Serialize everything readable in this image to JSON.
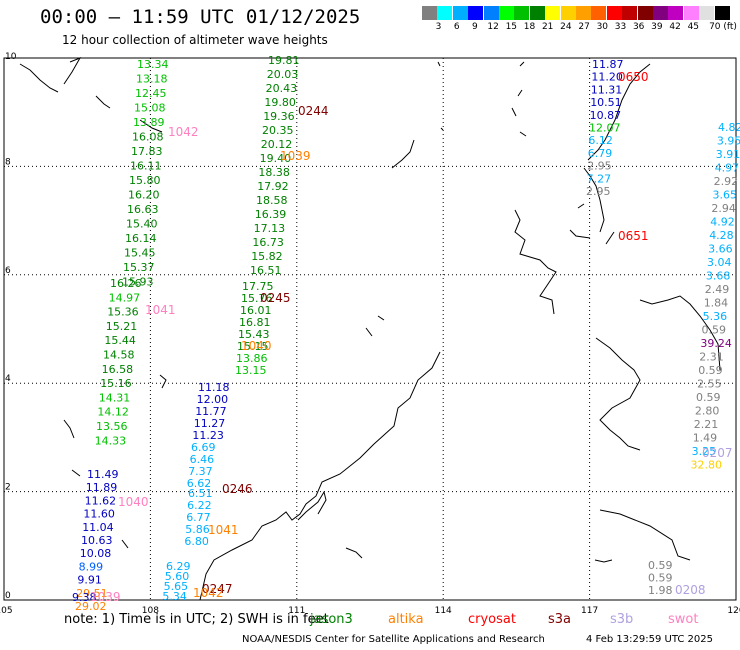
{
  "title": "00:00 – 11:59 UTC 01/12/2025",
  "subtitle": "12 hour collection of altimeter wave heights",
  "scale": {
    "colors": [
      "#808080",
      "#00ffff",
      "#00b0ff",
      "#0000ff",
      "#0080ff",
      "#00ff00",
      "#00c000",
      "#008000",
      "#ffff00",
      "#ffd000",
      "#ffa000",
      "#ff6000",
      "#ff0000",
      "#c00000",
      "#800000",
      "#800080",
      "#c000c0",
      "#ff80ff",
      "#e0e0e0",
      "#000000"
    ],
    "labels": [
      "3",
      "6",
      "9",
      "12",
      "15",
      "18",
      "21",
      "24",
      "27",
      "30",
      "33",
      "36",
      "39",
      "42",
      "45",
      "70 (ft)"
    ]
  },
  "axes": {
    "x_ticks": [
      "105",
      "108",
      "111",
      "114",
      "117",
      "120"
    ],
    "y_ticks": [
      "0",
      "2",
      "4",
      "6",
      "8",
      "10"
    ]
  },
  "tracks": [
    {
      "id": "1042",
      "color": "#ff80c0",
      "values": [
        {
          "v": "13.34",
          "c": "#00c000"
        },
        {
          "v": "13.18",
          "c": "#00c000"
        },
        {
          "v": "12.45",
          "c": "#00c000"
        },
        {
          "v": "15.08",
          "c": "#00c000"
        },
        {
          "v": "13.89",
          "c": "#00c000"
        },
        {
          "v": "16.08",
          "c": "#008000"
        },
        {
          "v": "17.83",
          "c": "#008000"
        },
        {
          "v": "16.11",
          "c": "#008000"
        },
        {
          "v": "15.80",
          "c": "#008000"
        },
        {
          "v": "16.20",
          "c": "#008000"
        },
        {
          "v": "16.63",
          "c": "#008000"
        },
        {
          "v": "15.40",
          "c": "#008000"
        },
        {
          "v": "16.14",
          "c": "#008000"
        },
        {
          "v": "15.45",
          "c": "#008000"
        },
        {
          "v": "15.37",
          "c": "#008000"
        },
        {
          "v": "15.93",
          "c": "#008000"
        }
      ]
    },
    {
      "id": "1041",
      "color": "#ff80c0",
      "values": [
        {
          "v": "16.26",
          "c": "#008000"
        },
        {
          "v": "14.97",
          "c": "#00c000"
        },
        {
          "v": "15.36",
          "c": "#008000"
        },
        {
          "v": "15.21",
          "c": "#008000"
        },
        {
          "v": "15.44",
          "c": "#008000"
        },
        {
          "v": "14.58",
          "c": "#008000"
        },
        {
          "v": "16.58",
          "c": "#008000"
        },
        {
          "v": "15.16",
          "c": "#008000"
        },
        {
          "v": "14.31",
          "c": "#00c000"
        },
        {
          "v": "14.12",
          "c": "#00c000"
        },
        {
          "v": "13.56",
          "c": "#00c000"
        },
        {
          "v": "14.33",
          "c": "#00c000"
        }
      ]
    },
    {
      "id": "1040",
      "color": "#ff80c0",
      "values": [
        {
          "v": "11.49",
          "c": "#0000c0"
        },
        {
          "v": "11.89",
          "c": "#0000c0"
        },
        {
          "v": "11.62",
          "c": "#0000c0"
        },
        {
          "v": "11.60",
          "c": "#0000c0"
        },
        {
          "v": "11.04",
          "c": "#0000c0"
        },
        {
          "v": "10.63",
          "c": "#0000c0"
        },
        {
          "v": "10.08",
          "c": "#0000c0"
        },
        {
          "v": "8.99",
          "c": "#0060ff"
        },
        {
          "v": "9.91",
          "c": "#0000c0"
        },
        {
          "v": "29.51",
          "c": "#ff8000"
        },
        {
          "v": "29.02",
          "c": "#ff8000"
        }
      ]
    },
    {
      "id": "1039",
      "color": "#ff80c0",
      "values": [
        {
          "v": "9.38",
          "c": "#0000c0"
        }
      ]
    },
    {
      "id": "0244",
      "color": "#800000",
      "values": [
        {
          "v": "19.81",
          "c": "#008000"
        },
        {
          "v": "20.03",
          "c": "#008000"
        },
        {
          "v": "20.43",
          "c": "#008000"
        },
        {
          "v": "19.80",
          "c": "#008000"
        },
        {
          "v": "19.36",
          "c": "#008000"
        },
        {
          "v": "20.35",
          "c": "#008000"
        },
        {
          "v": "20.12",
          "c": "#008000"
        },
        {
          "v": "19.40",
          "c": "#008000"
        },
        {
          "v": "18.38",
          "c": "#008000"
        },
        {
          "v": "17.92",
          "c": "#008000"
        },
        {
          "v": "18.58",
          "c": "#008000"
        },
        {
          "v": "16.39",
          "c": "#008000"
        },
        {
          "v": "17.13",
          "c": "#008000"
        },
        {
          "v": "16.73",
          "c": "#008000"
        },
        {
          "v": "15.82",
          "c": "#008000"
        },
        {
          "v": "16.51",
          "c": "#008000"
        }
      ]
    },
    {
      "id": "1039",
      "color": "#ff8000",
      "values": []
    },
    {
      "id": "0245",
      "color": "#800000",
      "values": [
        {
          "v": "17.75",
          "c": "#008000"
        },
        {
          "v": "15.76",
          "c": "#008000"
        },
        {
          "v": "16.01",
          "c": "#008000"
        },
        {
          "v": "16.81",
          "c": "#008000"
        },
        {
          "v": "15.43",
          "c": "#008000"
        },
        {
          "v": "15.15",
          "c": "#008000"
        },
        {
          "v": "13.86",
          "c": "#00c000"
        },
        {
          "v": "13.15",
          "c": "#00c000"
        }
      ]
    },
    {
      "id": "1040",
      "color": "#ff8000",
      "values": [
        {
          "v": "11.18",
          "c": "#0000c0"
        },
        {
          "v": "12.00",
          "c": "#0000c0"
        },
        {
          "v": "11.77",
          "c": "#0000c0"
        },
        {
          "v": "11.27",
          "c": "#0000c0"
        },
        {
          "v": "11.23",
          "c": "#0000c0"
        },
        {
          "v": "6.69",
          "c": "#00b0ff"
        },
        {
          "v": "6.46",
          "c": "#00b0ff"
        },
        {
          "v": "7.37",
          "c": "#00b0ff"
        },
        {
          "v": "6.62",
          "c": "#00b0ff"
        }
      ]
    },
    {
      "id": "0246",
      "color": "#800000",
      "values": [
        {
          "v": "6.51",
          "c": "#00b0ff"
        },
        {
          "v": "6.22",
          "c": "#00b0ff"
        },
        {
          "v": "6.77",
          "c": "#00b0ff"
        },
        {
          "v": "5.86",
          "c": "#00b0ff"
        },
        {
          "v": "6.80",
          "c": "#00b0ff"
        }
      ]
    },
    {
      "id": "1041",
      "color": "#ff8000",
      "values": []
    },
    {
      "id": "0247",
      "color": "#800000",
      "values": [
        {
          "v": "6.29",
          "c": "#00b0ff"
        },
        {
          "v": "5.60",
          "c": "#00b0ff"
        },
        {
          "v": "5.65",
          "c": "#00b0ff"
        },
        {
          "v": "5.34",
          "c": "#00b0ff"
        }
      ]
    },
    {
      "id": "1042",
      "color": "#ff8000",
      "values": []
    },
    {
      "id": "0650",
      "color": "#ff0000",
      "values": [
        {
          "v": "11.87",
          "c": "#0000c0"
        },
        {
          "v": "11.20",
          "c": "#0000c0"
        },
        {
          "v": "11.31",
          "c": "#0000c0"
        },
        {
          "v": "10.51",
          "c": "#0000c0"
        },
        {
          "v": "10.87",
          "c": "#0000c0"
        },
        {
          "v": "12.07",
          "c": "#00c000"
        },
        {
          "v": "6.12",
          "c": "#00b0ff"
        },
        {
          "v": "6.79",
          "c": "#00b0ff"
        },
        {
          "v": "2.95",
          "c": "#808080"
        },
        {
          "v": "7.27",
          "c": "#00b0ff"
        },
        {
          "v": "2.95",
          "c": "#808080"
        }
      ]
    },
    {
      "id": "0651",
      "color": "#ff0000",
      "values": [
        {
          "v": "4.82",
          "c": "#00b0ff"
        },
        {
          "v": "3.95",
          "c": "#00b0ff"
        },
        {
          "v": "3.91",
          "c": "#00b0ff"
        },
        {
          "v": "4.97",
          "c": "#00b0ff"
        },
        {
          "v": "2.92",
          "c": "#808080"
        },
        {
          "v": "3.65",
          "c": "#00b0ff"
        },
        {
          "v": "2.94",
          "c": "#808080"
        },
        {
          "v": "4.92",
          "c": "#00b0ff"
        },
        {
          "v": "4.28",
          "c": "#00b0ff"
        },
        {
          "v": "3.66",
          "c": "#00b0ff"
        },
        {
          "v": "3.04",
          "c": "#00b0ff"
        },
        {
          "v": "3.68",
          "c": "#00b0ff"
        },
        {
          "v": "2.49",
          "c": "#808080"
        },
        {
          "v": "1.84",
          "c": "#808080"
        },
        {
          "v": "5.36",
          "c": "#00b0ff"
        },
        {
          "v": "0.59",
          "c": "#808080"
        },
        {
          "v": "39.24",
          "c": "#800080"
        },
        {
          "v": "2.31",
          "c": "#808080"
        },
        {
          "v": "0.59",
          "c": "#808080"
        },
        {
          "v": "2.55",
          "c": "#808080"
        },
        {
          "v": "0.59",
          "c": "#808080"
        },
        {
          "v": "2.80",
          "c": "#808080"
        },
        {
          "v": "2.21",
          "c": "#808080"
        },
        {
          "v": "1.49",
          "c": "#808080"
        },
        {
          "v": "3.25",
          "c": "#00b0ff"
        },
        {
          "v": "32.80",
          "c": "#ffd000"
        }
      ]
    },
    {
      "id": "0207",
      "color": "#b0a0e0",
      "values": []
    },
    {
      "id": "0208",
      "color": "#b0a0e0",
      "values": [
        {
          "v": "0.59",
          "c": "#808080"
        },
        {
          "v": "0.59",
          "c": "#808080"
        },
        {
          "v": "1.98",
          "c": "#808080"
        }
      ]
    }
  ],
  "note": "note:  1) Time is in UTC;  2) SWH is in feet",
  "legend": [
    {
      "name": "jason3",
      "color": "#008000"
    },
    {
      "name": "altika",
      "color": "#ff8000"
    },
    {
      "name": "cryosat",
      "color": "#ff0000"
    },
    {
      "name": "s3a",
      "color": "#800000"
    },
    {
      "name": "s3b",
      "color": "#b0a0e0"
    },
    {
      "name": "swot",
      "color": "#ff80c0"
    }
  ],
  "footer": "NOAA/NESDIS Center for Satellite Applications and Research",
  "footer_date": "4 Feb 13:29:59 UTC 2025"
}
